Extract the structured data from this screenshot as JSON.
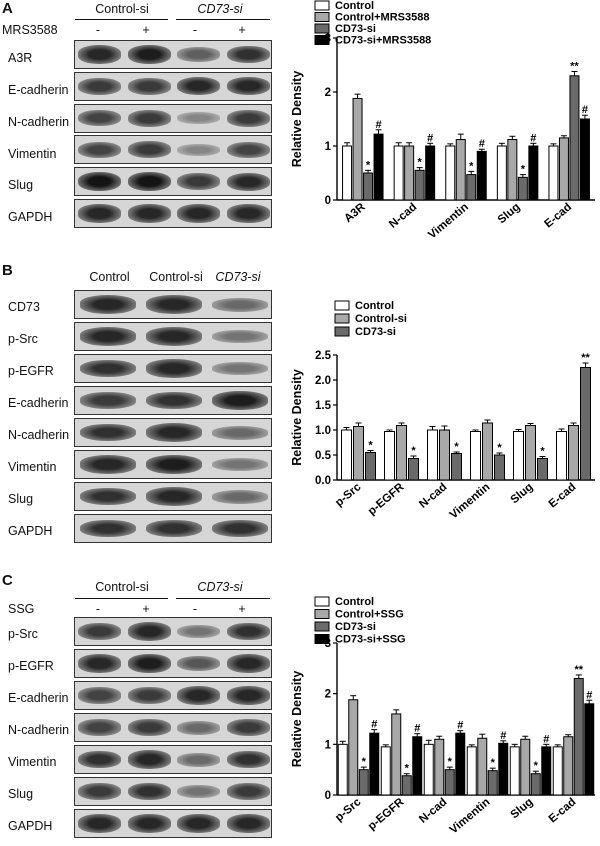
{
  "panels": [
    {
      "letter": "A",
      "blot": {
        "groups": [
          "Control-si",
          "CD73-si"
        ],
        "group_italic": [
          false,
          true
        ],
        "treatment_label": "MRS3588",
        "treatment_signs": [
          "-",
          "+",
          "-",
          "+"
        ],
        "rows": [
          "A3R",
          "E-cadherin",
          "N-cadherin",
          "Vimentin",
          "Slug",
          "GAPDH"
        ],
        "band_intensity": [
          [
            0.85,
            0.9,
            0.55,
            0.8
          ],
          [
            0.75,
            0.75,
            0.85,
            0.85
          ],
          [
            0.7,
            0.75,
            0.35,
            0.75
          ],
          [
            0.7,
            0.75,
            0.35,
            0.7
          ],
          [
            0.95,
            0.95,
            0.75,
            0.85
          ],
          [
            0.85,
            0.85,
            0.85,
            0.85
          ]
        ]
      }
    },
    {
      "letter": "B",
      "blot": {
        "lane_headers": [
          "Control",
          "Control-si",
          "CD73-si"
        ],
        "lane_italic": [
          false,
          false,
          true
        ],
        "rows": [
          "CD73",
          "p-Src",
          "p-EGFR",
          "E-cadherin",
          "N-cadherin",
          "Vimentin",
          "Slug",
          "GAPDH"
        ],
        "band_intensity": [
          [
            0.85,
            0.85,
            0.5
          ],
          [
            0.85,
            0.85,
            0.45
          ],
          [
            0.8,
            0.85,
            0.45
          ],
          [
            0.75,
            0.8,
            0.9
          ],
          [
            0.8,
            0.85,
            0.5
          ],
          [
            0.85,
            0.9,
            0.45
          ],
          [
            0.8,
            0.85,
            0.5
          ],
          [
            0.8,
            0.8,
            0.8
          ]
        ]
      }
    },
    {
      "letter": "C",
      "blot": {
        "groups": [
          "Control-si",
          "CD73-si"
        ],
        "group_italic": [
          false,
          true
        ],
        "treatment_label": "SSG",
        "treatment_signs": [
          "-",
          "+",
          "-",
          "+"
        ],
        "rows": [
          "p-Src",
          "p-EGFR",
          "E-cadherin",
          "N-cadherin",
          "Vimentin",
          "Slug",
          "GAPDH"
        ],
        "band_intensity": [
          [
            0.75,
            0.85,
            0.45,
            0.8
          ],
          [
            0.85,
            0.9,
            0.6,
            0.85
          ],
          [
            0.7,
            0.75,
            0.85,
            0.85
          ],
          [
            0.7,
            0.75,
            0.5,
            0.75
          ],
          [
            0.8,
            0.85,
            0.5,
            0.8
          ],
          [
            0.75,
            0.8,
            0.45,
            0.75
          ],
          [
            0.85,
            0.85,
            0.85,
            0.85
          ]
        ]
      }
    }
  ],
  "chart_data": [
    {
      "type": "bar",
      "panel": "A",
      "ylabel": "Relative Density",
      "ylim": [
        0,
        3
      ],
      "yticks": [
        0,
        1,
        2,
        3
      ],
      "categories": [
        "A3R",
        "N-cad",
        "Vimentin",
        "Slug",
        "E-cad"
      ],
      "series": [
        {
          "name": "Control",
          "color": "#ffffff",
          "values": [
            1.0,
            1.0,
            1.0,
            1.0,
            1.0
          ],
          "errors": [
            0.06,
            0.06,
            0.04,
            0.05,
            0.04
          ],
          "marks": [
            "",
            "",
            "",
            "",
            ""
          ]
        },
        {
          "name": "Control+MRS3588",
          "color": "#a8a8a8",
          "values": [
            1.88,
            1.0,
            1.12,
            1.12,
            1.15
          ],
          "errors": [
            0.08,
            0.06,
            0.1,
            0.06,
            0.04
          ],
          "marks": [
            "",
            "",
            "",
            "",
            ""
          ]
        },
        {
          "name": "CD73-si",
          "color": "#6a6a6a",
          "values": [
            0.5,
            0.55,
            0.47,
            0.42,
            2.3
          ],
          "errors": [
            0.05,
            0.05,
            0.06,
            0.05,
            0.08
          ],
          "marks": [
            "*",
            "*",
            "*",
            "*",
            "**"
          ]
        },
        {
          "name": "CD73-si+MRS3588",
          "color": "#000000",
          "values": [
            1.22,
            1.0,
            0.9,
            1.0,
            1.5
          ],
          "errors": [
            0.08,
            0.05,
            0.04,
            0.05,
            0.07
          ],
          "marks": [
            "#",
            "#",
            "#",
            "#",
            "#"
          ]
        }
      ],
      "legend_position": "top-right",
      "grid": false
    },
    {
      "type": "bar",
      "panel": "B",
      "ylabel": "Relative Density",
      "ylim": [
        0,
        2.5
      ],
      "yticks": [
        0.0,
        0.5,
        1.0,
        1.5,
        2.0,
        2.5
      ],
      "categories": [
        "p-Src",
        "p-EGFR",
        "N-cad",
        "Vimentin",
        "Slug",
        "E-cad"
      ],
      "series": [
        {
          "name": "Control",
          "color": "#ffffff",
          "values": [
            1.0,
            0.97,
            1.0,
            0.97,
            0.97,
            0.97
          ],
          "errors": [
            0.05,
            0.03,
            0.07,
            0.03,
            0.04,
            0.05
          ],
          "marks": [
            "",
            "",
            "",
            "",
            "",
            ""
          ]
        },
        {
          "name": "Control-si",
          "color": "#a8a8a8",
          "values": [
            1.07,
            1.09,
            1.0,
            1.14,
            1.09,
            1.09
          ],
          "errors": [
            0.07,
            0.05,
            0.08,
            0.06,
            0.04,
            0.05
          ],
          "marks": [
            "",
            "",
            "",
            "",
            "",
            ""
          ]
        },
        {
          "name": "CD73-si",
          "color": "#6a6a6a",
          "values": [
            0.55,
            0.43,
            0.53,
            0.5,
            0.43,
            2.25
          ],
          "errors": [
            0.04,
            0.05,
            0.03,
            0.04,
            0.04,
            0.09
          ],
          "marks": [
            "*",
            "*",
            "*",
            "*",
            "*",
            "**"
          ]
        }
      ],
      "legend_position": "top-left",
      "grid": false
    },
    {
      "type": "bar",
      "panel": "C",
      "ylabel": "Relative Density",
      "ylim": [
        0,
        3
      ],
      "yticks": [
        0,
        1,
        2,
        3
      ],
      "categories": [
        "p-Src",
        "p-EGFR",
        "N-cad",
        "Vimentin",
        "Slug",
        "E-cad"
      ],
      "series": [
        {
          "name": "Control",
          "color": "#ffffff",
          "values": [
            1.0,
            0.95,
            1.0,
            0.95,
            0.95,
            0.95
          ],
          "errors": [
            0.06,
            0.04,
            0.08,
            0.04,
            0.05,
            0.04
          ],
          "marks": [
            "",
            "",
            "",
            "",
            "",
            ""
          ]
        },
        {
          "name": "Control+SSG",
          "color": "#a8a8a8",
          "values": [
            1.88,
            1.6,
            1.1,
            1.12,
            1.1,
            1.15
          ],
          "errors": [
            0.08,
            0.08,
            0.06,
            0.08,
            0.06,
            0.04
          ],
          "marks": [
            "",
            "",
            "",
            "",
            "",
            ""
          ]
        },
        {
          "name": "CD73-si",
          "color": "#6a6a6a",
          "values": [
            0.5,
            0.38,
            0.5,
            0.48,
            0.42,
            2.3
          ],
          "errors": [
            0.05,
            0.04,
            0.05,
            0.05,
            0.05,
            0.07
          ],
          "marks": [
            "*",
            "*",
            "*",
            "*",
            "*",
            "**"
          ]
        },
        {
          "name": "CD73-si+SSG",
          "color": "#000000",
          "values": [
            1.22,
            1.15,
            1.22,
            1.02,
            0.95,
            1.8
          ],
          "errors": [
            0.07,
            0.06,
            0.05,
            0.05,
            0.05,
            0.07
          ],
          "marks": [
            "#",
            "#",
            "#",
            "#",
            "#",
            "#"
          ]
        }
      ],
      "legend_position": "top-left",
      "grid": false
    }
  ]
}
